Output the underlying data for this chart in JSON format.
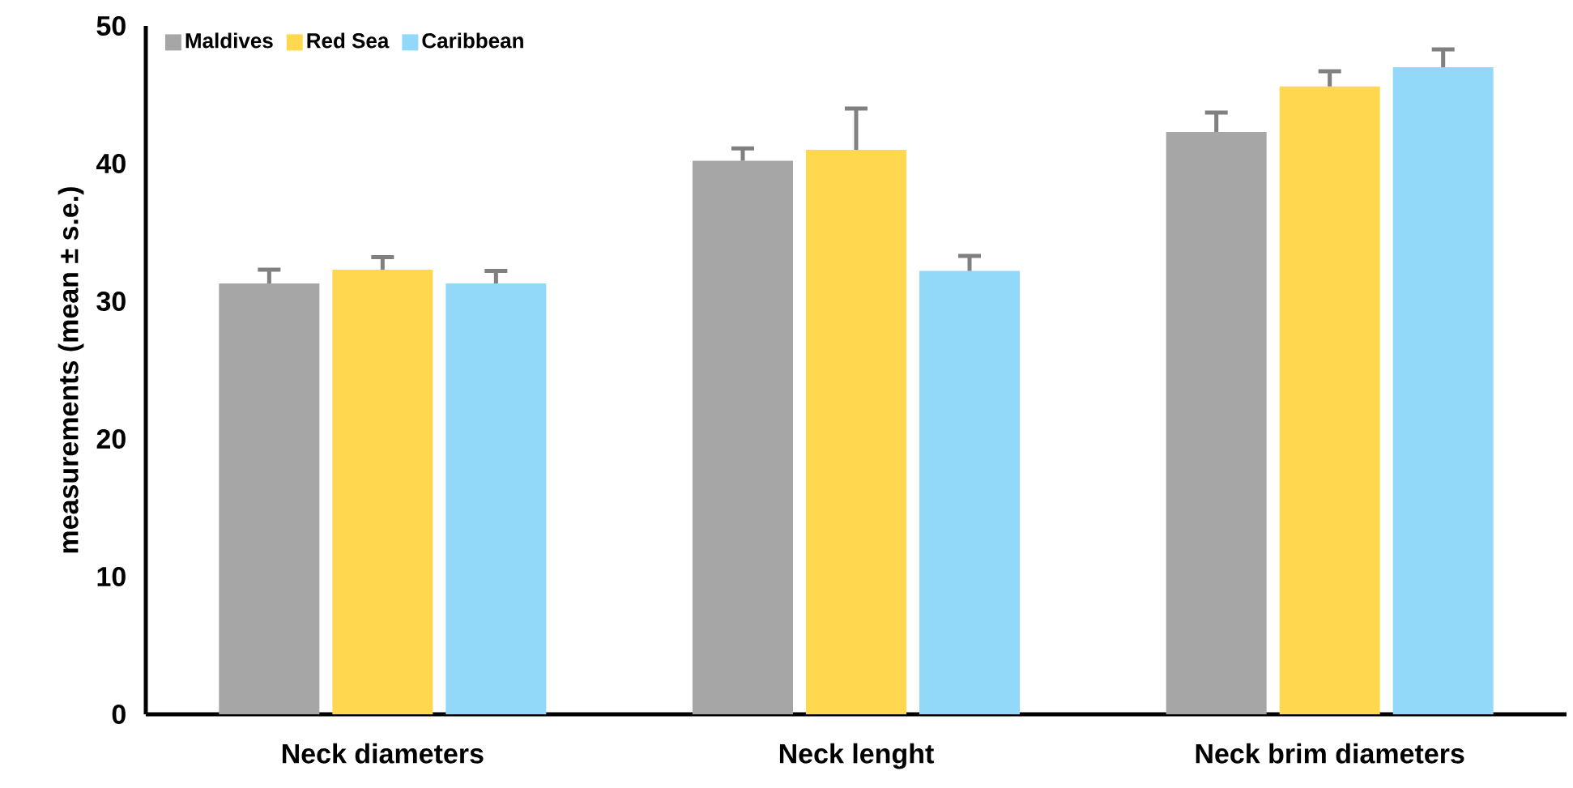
{
  "chart_data": {
    "type": "bar",
    "ylabel": "measurements (mean ± s.e.)",
    "categories": [
      "Neck diameters",
      "Neck lenght",
      "Neck brim diameters"
    ],
    "series": [
      {
        "name": "Maldives",
        "color": "#a6a6a6",
        "values": [
          31.3,
          40.2,
          42.3
        ],
        "errors": [
          [
            31.3,
            32.3
          ],
          [
            40.2,
            41.1
          ],
          [
            42.3,
            43.7
          ]
        ]
      },
      {
        "name": "Red Sea",
        "color": "#ffd84f",
        "values": [
          32.3,
          41.0,
          45.6
        ],
        "errors": [
          [
            32.3,
            33.2
          ],
          [
            41.0,
            44.0
          ],
          [
            45.6,
            46.7
          ]
        ]
      },
      {
        "name": "Caribbean",
        "color": "#92d8f8",
        "values": [
          31.3,
          32.2,
          47.0
        ],
        "errors": [
          [
            31.3,
            32.2
          ],
          [
            32.2,
            33.3
          ],
          [
            47.0,
            48.3
          ]
        ]
      }
    ],
    "ylim": [
      0,
      50
    ],
    "yticks": [
      0,
      10,
      20,
      30,
      40,
      50
    ],
    "grid": false,
    "legend": "top left"
  }
}
